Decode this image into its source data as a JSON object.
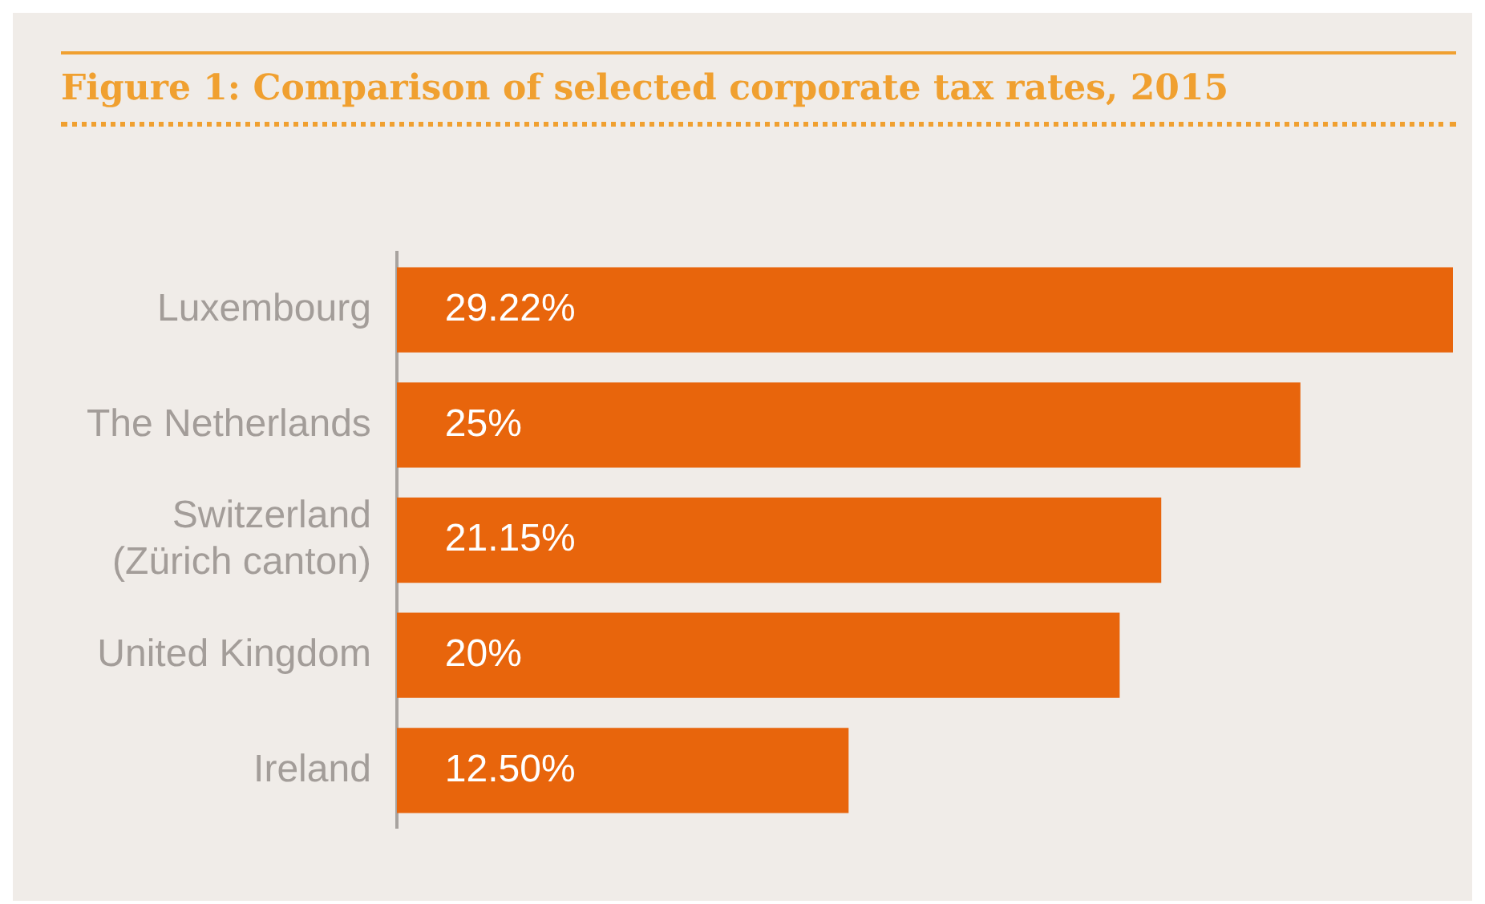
{
  "chart_data": {
    "type": "bar",
    "title": "Figure 1: Comparison of selected corporate tax rates, 2015",
    "orientation": "horizontal",
    "categories": [
      "Luxembourg",
      "The Netherlands",
      "Switzerland\n(Zürich canton)",
      "United Kingdom",
      "Ireland"
    ],
    "values": [
      29.22,
      25,
      21.15,
      20,
      12.5
    ],
    "value_labels": [
      "29.22%",
      "25%",
      "21.15%",
      "20%",
      "12.50%"
    ],
    "color": "#e8650c",
    "grid": false,
    "legend": false
  }
}
